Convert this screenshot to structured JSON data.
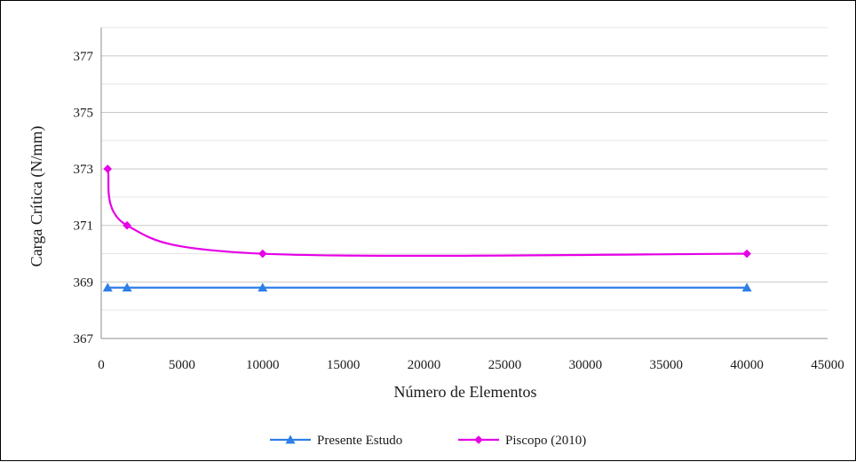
{
  "chart_data": {
    "type": "line",
    "title": "",
    "xlabel": "Número de Elementos",
    "ylabel": "Carga Crítica (N/mm)",
    "xlim": [
      0,
      45000
    ],
    "ylim": [
      367,
      378
    ],
    "xticks": [
      0,
      5000,
      10000,
      15000,
      20000,
      25000,
      30000,
      35000,
      40000,
      45000
    ],
    "yticks": [
      367,
      369,
      371,
      373,
      375,
      377
    ],
    "grid": true,
    "legend_position": "bottom",
    "smooth": true,
    "series": [
      {
        "name": "Presente Estudo",
        "color": "#2f7fe8",
        "marker": "triangle",
        "x": [
          400,
          1600,
          10000,
          40000
        ],
        "y": [
          368.8,
          368.8,
          368.8,
          368.8
        ]
      },
      {
        "name": "Piscopo (2010)",
        "color": "#e600e6",
        "marker": "diamond",
        "x": [
          400,
          1600,
          10000,
          40000
        ],
        "y": [
          373.0,
          371.0,
          370.0,
          370.0
        ]
      }
    ]
  }
}
